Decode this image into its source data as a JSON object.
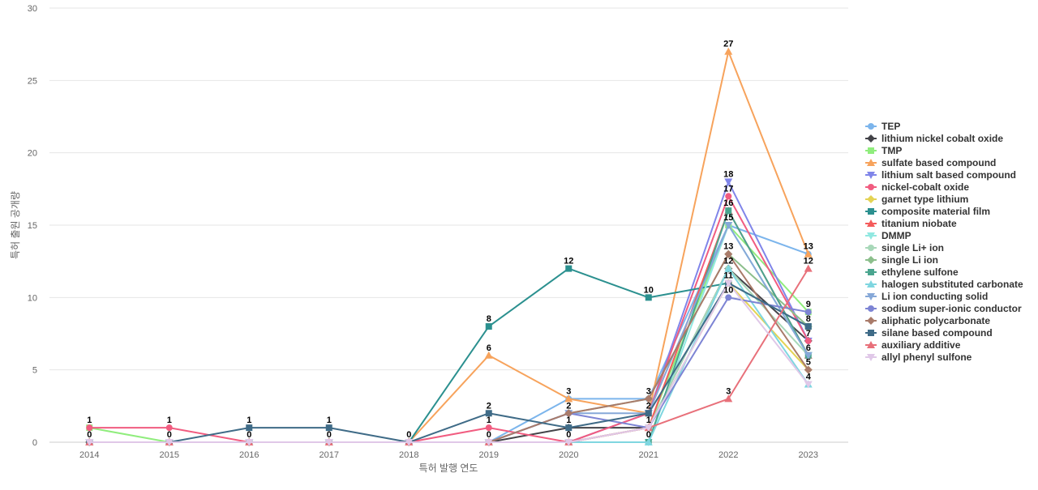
{
  "chart_data": {
    "type": "line",
    "title": "",
    "xlabel": "특허 발행 연도",
    "ylabel": "특허 출원 공개량",
    "ylim": [
      0,
      30
    ],
    "yticks": [
      0,
      5,
      10,
      15,
      20,
      25,
      30
    ],
    "categories": [
      "2014",
      "2015",
      "2016",
      "2017",
      "2018",
      "2019",
      "2020",
      "2021",
      "2022",
      "2023"
    ],
    "grid": true,
    "legend": "right",
    "series": [
      {
        "name": "TEP",
        "color": "#7cb5ec",
        "marker": "circle",
        "values": [
          0,
          0,
          0,
          0,
          0,
          0,
          3,
          3,
          15,
          13
        ]
      },
      {
        "name": "lithium nickel cobalt oxide",
        "color": "#434348",
        "marker": "diamond",
        "values": [
          0,
          0,
          0,
          0,
          0,
          0,
          1,
          1,
          12,
          7
        ]
      },
      {
        "name": "TMP",
        "color": "#90ed7d",
        "marker": "square",
        "values": [
          1,
          0,
          0,
          0,
          0,
          0,
          0,
          1,
          15,
          9
        ]
      },
      {
        "name": "sulfate based compound",
        "color": "#f7a35c",
        "marker": "triangle",
        "values": [
          0,
          0,
          0,
          0,
          0,
          6,
          3,
          2,
          27,
          13
        ]
      },
      {
        "name": "lithium salt based compound",
        "color": "#8085e9",
        "marker": "triangle-down",
        "values": [
          0,
          0,
          0,
          0,
          0,
          0,
          0,
          2,
          18,
          7
        ]
      },
      {
        "name": "nickel-cobalt oxide",
        "color": "#f15c80",
        "marker": "circle",
        "values": [
          1,
          1,
          0,
          0,
          0,
          1,
          0,
          2,
          17,
          7
        ]
      },
      {
        "name": "garnet type lithium",
        "color": "#e4d354",
        "marker": "diamond",
        "values": [
          0,
          0,
          0,
          0,
          0,
          0,
          0,
          1,
          11,
          5
        ]
      },
      {
        "name": "composite material film",
        "color": "#2b908f",
        "marker": "square",
        "values": [
          0,
          0,
          0,
          0,
          0,
          8,
          12,
          10,
          11,
          8
        ]
      },
      {
        "name": "titanium niobate",
        "color": "#f45b5b",
        "marker": "triangle",
        "values": [
          0,
          0,
          0,
          0,
          0,
          0,
          0,
          1,
          16,
          6
        ]
      },
      {
        "name": "DMMP",
        "color": "#91e8e1",
        "marker": "triangle-down",
        "values": [
          0,
          0,
          0,
          0,
          0,
          0,
          0,
          0,
          15,
          6
        ]
      },
      {
        "name": "single Li+ ion",
        "color": "#a8d8b9",
        "marker": "circle",
        "values": [
          0,
          0,
          0,
          0,
          0,
          0,
          0,
          1,
          12,
          6
        ]
      },
      {
        "name": "single Li ion",
        "color": "#8cbf8c",
        "marker": "diamond",
        "values": [
          0,
          0,
          0,
          0,
          0,
          0,
          2,
          3,
          13,
          8
        ]
      },
      {
        "name": "ethylene sulfone",
        "color": "#4aa58f",
        "marker": "square",
        "values": [
          0,
          0,
          0,
          0,
          0,
          0,
          0,
          0,
          16,
          6
        ]
      },
      {
        "name": "halogen substituted carbonate",
        "color": "#7fd6e0",
        "marker": "triangle",
        "values": [
          0,
          0,
          0,
          0,
          0,
          0,
          0,
          0,
          12,
          4
        ]
      },
      {
        "name": "Li ion conducting solid",
        "color": "#86a8d8",
        "marker": "triangle-down",
        "values": [
          0,
          0,
          0,
          0,
          0,
          0,
          2,
          2,
          15,
          6
        ]
      },
      {
        "name": "sodium super-ionic conductor",
        "color": "#7d84d4",
        "marker": "circle",
        "values": [
          0,
          0,
          0,
          0,
          0,
          0,
          2,
          1,
          10,
          9
        ]
      },
      {
        "name": "aliphatic polycarbonate",
        "color": "#a97b6a",
        "marker": "diamond",
        "values": [
          0,
          0,
          0,
          0,
          0,
          0,
          2,
          3,
          13,
          5
        ]
      },
      {
        "name": "silane based compound",
        "color": "#3f6b87",
        "marker": "square",
        "values": [
          0,
          0,
          1,
          1,
          0,
          2,
          1,
          2,
          11,
          8
        ]
      },
      {
        "name": "auxiliary additive",
        "color": "#e8707a",
        "marker": "triangle",
        "values": [
          0,
          0,
          0,
          0,
          0,
          0,
          0,
          1,
          3,
          12
        ]
      },
      {
        "name": "allyl phenyl sulfone",
        "color": "#e0c8e8",
        "marker": "triangle-down",
        "values": [
          0,
          0,
          0,
          0,
          0,
          0,
          0,
          1,
          11,
          4
        ]
      }
    ],
    "data_labels": [
      {
        "x": "2014",
        "text": "1",
        "y": 1
      },
      {
        "x": "2014",
        "text": "0",
        "y": 0
      },
      {
        "x": "2015",
        "text": "1",
        "y": 1
      },
      {
        "x": "2015",
        "text": "0",
        "y": 0
      },
      {
        "x": "2016",
        "text": "1",
        "y": 1
      },
      {
        "x": "2016",
        "text": "0",
        "y": 0
      },
      {
        "x": "2017",
        "text": "1",
        "y": 1
      },
      {
        "x": "2017",
        "text": "0",
        "y": 0
      },
      {
        "x": "2018",
        "text": "0",
        "y": 0
      },
      {
        "x": "2019",
        "text": "8",
        "y": 8
      },
      {
        "x": "2019",
        "text": "6",
        "y": 6
      },
      {
        "x": "2019",
        "text": "2",
        "y": 2
      },
      {
        "x": "2019",
        "text": "1",
        "y": 1
      },
      {
        "x": "2019",
        "text": "0",
        "y": 0
      },
      {
        "x": "2020",
        "text": "12",
        "y": 12
      },
      {
        "x": "2020",
        "text": "3",
        "y": 3
      },
      {
        "x": "2020",
        "text": "2",
        "y": 2
      },
      {
        "x": "2020",
        "text": "1",
        "y": 1
      },
      {
        "x": "2020",
        "text": "0",
        "y": 0
      },
      {
        "x": "2021",
        "text": "10",
        "y": 10
      },
      {
        "x": "2021",
        "text": "3",
        "y": 3
      },
      {
        "x": "2021",
        "text": "2",
        "y": 2
      },
      {
        "x": "2021",
        "text": "1",
        "y": 1
      },
      {
        "x": "2021",
        "text": "0",
        "y": 0
      },
      {
        "x": "2022",
        "text": "27",
        "y": 27
      },
      {
        "x": "2022",
        "text": "18",
        "y": 18
      },
      {
        "x": "2022",
        "text": "17",
        "y": 17
      },
      {
        "x": "2022",
        "text": "16",
        "y": 16
      },
      {
        "x": "2022",
        "text": "15",
        "y": 15
      },
      {
        "x": "2022",
        "text": "13",
        "y": 13
      },
      {
        "x": "2022",
        "text": "12",
        "y": 12
      },
      {
        "x": "2022",
        "text": "11",
        "y": 11
      },
      {
        "x": "2022",
        "text": "10",
        "y": 10
      },
      {
        "x": "2022",
        "text": "3",
        "y": 3
      },
      {
        "x": "2023",
        "text": "13",
        "y": 13
      },
      {
        "x": "2023",
        "text": "12",
        "y": 12
      },
      {
        "x": "2023",
        "text": "9",
        "y": 9
      },
      {
        "x": "2023",
        "text": "8",
        "y": 8
      },
      {
        "x": "2023",
        "text": "7",
        "y": 7
      },
      {
        "x": "2023",
        "text": "6",
        "y": 6
      },
      {
        "x": "2023",
        "text": "5",
        "y": 5
      },
      {
        "x": "2023",
        "text": "4",
        "y": 4
      }
    ]
  }
}
